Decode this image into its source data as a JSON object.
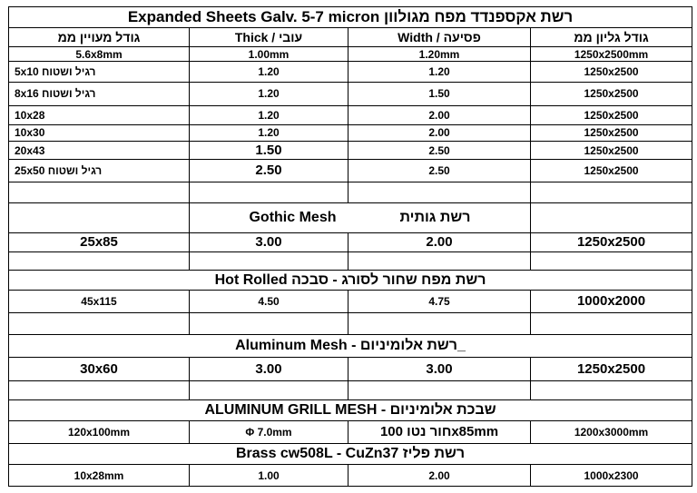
{
  "title": "Expanded Sheets Galv. 5-7 micron רשת אקספנדד מפח מגולוון",
  "headers": {
    "mesh_size": "גודל מעויין ממ",
    "thick": "Thick / עובי",
    "width": "Width / פסיעה",
    "sheet_size": "גודל גליון ממ"
  },
  "expanded_rows": [
    {
      "mesh": "5.6x8mm",
      "thick": "1.00mm",
      "width": "1.20mm",
      "sheet": "1250x2500mm"
    },
    {
      "mesh": "5x10 רגיל ושטוח",
      "thick": "1.20",
      "width": "1.20",
      "sheet": "1250x2500"
    },
    {
      "mesh": "8x16 רגיל ושטוח",
      "thick": "1.20",
      "width": "1.50",
      "sheet": "1250x2500"
    },
    {
      "mesh": "10x28",
      "thick": "1.20",
      "width": "2.00",
      "sheet": "1250x2500"
    },
    {
      "mesh": "10x30",
      "thick": "1.20",
      "width": "2.00",
      "sheet": "1250x2500"
    },
    {
      "mesh": "20x43",
      "thick": "1.50",
      "width": "2.50",
      "sheet": "1250x2500"
    },
    {
      "mesh": "25x50 רגיל ושטוח",
      "thick": "2.50",
      "width": "2.50",
      "sheet": "1250x2500"
    }
  ],
  "gothic": {
    "title_en": "Gothic Mesh",
    "title_he": "רשת גותית",
    "row": {
      "mesh": "25x85",
      "thick": "3.00",
      "width": "2.00",
      "sheet": "1250x2500"
    }
  },
  "hot_rolled": {
    "title": "Hot Rolled רשת מפח שחור לסורג - סבכה",
    "row": {
      "mesh": "45x115",
      "thick": "4.50",
      "width": "4.75",
      "sheet": "1000x2000"
    }
  },
  "aluminum": {
    "title": "Aluminum Mesh  - רשת אלומיניום_",
    "row": {
      "mesh": "30x60",
      "thick": "3.00",
      "width": "3.00",
      "sheet": "1250x2500"
    }
  },
  "aluminum_grill": {
    "title": "ALUMINUM GRILL MESH  - שבכת אלומיניום",
    "row": {
      "mesh": "120x100mm",
      "thick": "Φ 7.0mm",
      "width": "חור נטו 100x85mm",
      "sheet": "1200x3000mm"
    }
  },
  "brass": {
    "title": "Brass cw508L  - CuZn37 רשת פליז",
    "row": {
      "mesh": "10x28mm",
      "thick": "1.00",
      "width": "2.00",
      "sheet": "1000x2300"
    }
  }
}
